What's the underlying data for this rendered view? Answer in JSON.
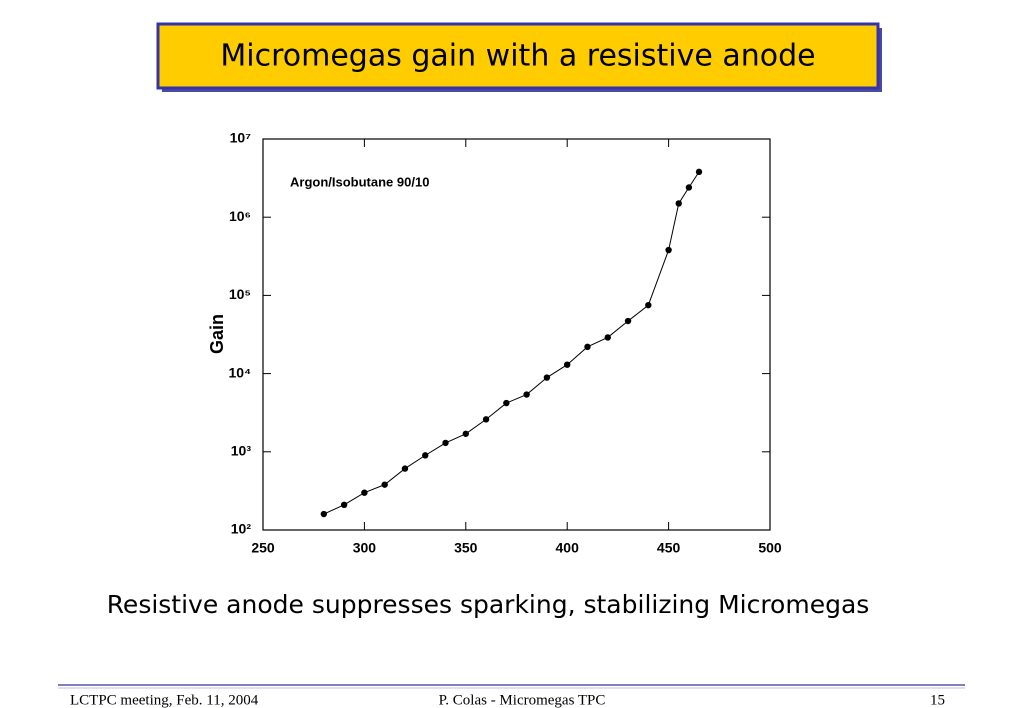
{
  "slide_title": "Micromegas gain with a resistive anode",
  "chart_data": {
    "type": "line",
    "annotation": "Argon/Isobutane 90/10",
    "y_label": "Gain",
    "x": [
      280,
      290,
      300,
      310,
      320,
      330,
      340,
      350,
      360,
      370,
      380,
      390,
      400,
      410,
      420,
      430,
      440,
      450,
      455,
      460,
      465
    ],
    "series": [
      {
        "color": "#000000",
        "values": [
          160,
          210,
          300,
          380,
          610,
          900,
          1300,
          1700,
          2600,
          4200,
          5400,
          8900,
          13000,
          22000,
          29000,
          47000,
          75000,
          380000,
          1500000,
          2400000,
          3800000
        ]
      }
    ],
    "xlim": [
      250,
      500
    ],
    "xticks": [
      250,
      300,
      350,
      400,
      450,
      500
    ],
    "ylim": [
      100,
      10000000
    ],
    "ylog": true,
    "yticks": [
      {
        "value": 100,
        "label": "10²"
      },
      {
        "value": 1000,
        "label": "10³"
      },
      {
        "value": 10000,
        "label": "10⁴"
      },
      {
        "value": 100000,
        "label": "10⁵"
      },
      {
        "value": 1000000,
        "label": "10⁶"
      },
      {
        "value": 10000000,
        "label": "10⁷"
      }
    ]
  },
  "caption": "Resistive anode suppresses sparking, stabilizing Micromegas",
  "footer": {
    "left": "LCTPC meeting,  Feb. 11, 2004",
    "center": "P. Colas  -  Micromegas TPC",
    "page": 15
  }
}
